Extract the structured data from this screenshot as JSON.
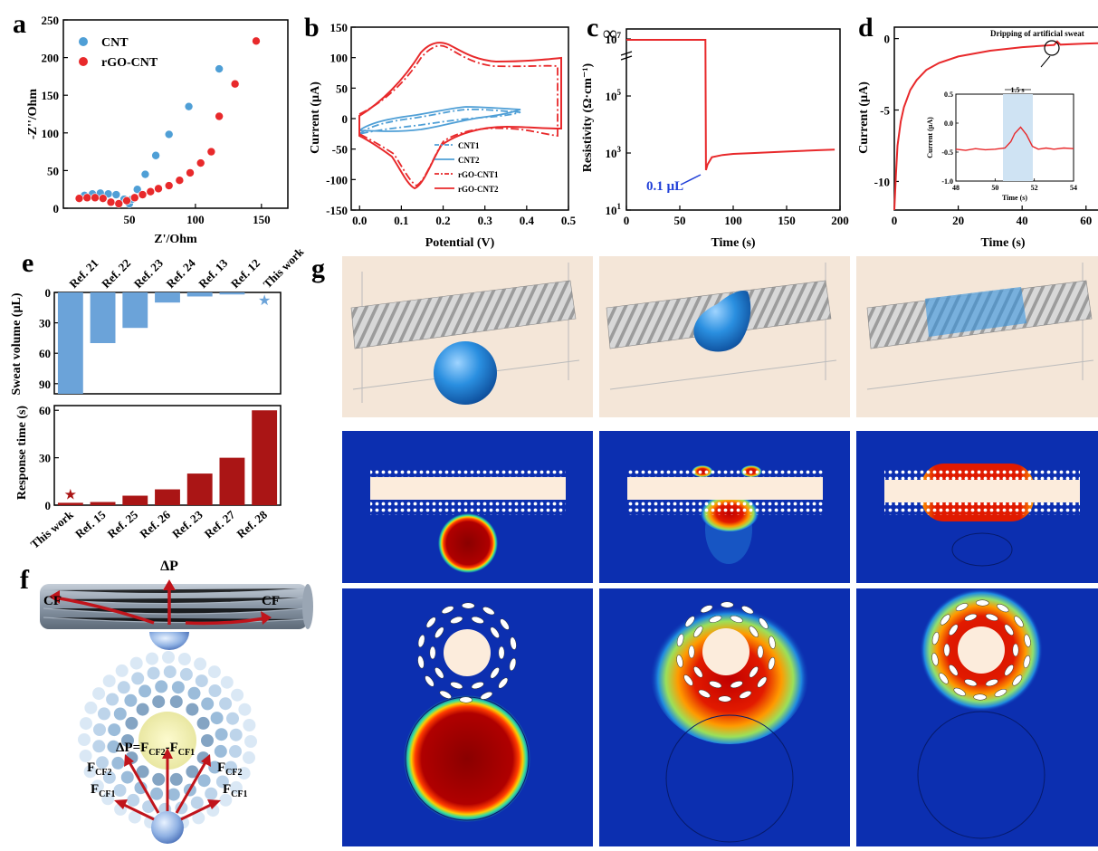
{
  "panel_labels": {
    "a": "a",
    "b": "b",
    "c": "c",
    "d": "d",
    "e": "e",
    "f": "f",
    "g": "g"
  },
  "chart_data": [
    {
      "panel": "a",
      "type": "scatter",
      "xlabel": "Z'/Ohm",
      "ylabel": "-Z''/Ohm",
      "xlim": [
        0,
        170
      ],
      "ylim": [
        0,
        250
      ],
      "xticks": [
        "50",
        "100",
        "150"
      ],
      "yticks": [
        "0",
        "50",
        "100",
        "150",
        "200",
        "250"
      ],
      "legend": "top-left",
      "series": [
        {
          "name": "CNT",
          "color": "#4f9fd6",
          "x": [
            16,
            22,
            28,
            34,
            40,
            46,
            50,
            52,
            56,
            62,
            70,
            80,
            95,
            118
          ],
          "y": [
            17,
            19,
            20,
            19,
            18,
            12,
            6,
            12,
            25,
            45,
            70,
            98,
            135,
            185
          ]
        },
        {
          "name": "rGO-CNT",
          "color": "#e8292b",
          "x": [
            12,
            18,
            24,
            30,
            36,
            42,
            48,
            54,
            60,
            66,
            72,
            80,
            88,
            96,
            104,
            112,
            118,
            130,
            146
          ],
          "y": [
            13,
            14,
            14,
            13,
            8,
            6,
            10,
            14,
            18,
            22,
            26,
            30,
            37,
            47,
            60,
            75,
            122,
            165,
            222
          ]
        }
      ]
    },
    {
      "panel": "b",
      "type": "line",
      "xlabel": "Potential (V)",
      "ylabel": "Current (µA)",
      "xlim": [
        -0.02,
        0.5
      ],
      "ylim": [
        -150,
        150
      ],
      "xticks": [
        "0.0",
        "0.1",
        "0.2",
        "0.3",
        "0.4",
        "0.5"
      ],
      "yticks": [
        "-150",
        "-100",
        "-50",
        "0",
        "50",
        "100",
        "150"
      ],
      "legend": "bottom-right",
      "series": [
        {
          "name": "CNT1",
          "color": "#4f9fd6",
          "dash": "dashdot"
        },
        {
          "name": "CNT2",
          "color": "#4f9fd6",
          "dash": "solid"
        },
        {
          "name": "rGO-CNT1",
          "color": "#e8292b",
          "dash": "dashdot"
        },
        {
          "name": "rGO-CNT2",
          "color": "#e8292b",
          "dash": "solid"
        }
      ]
    },
    {
      "panel": "c",
      "type": "line",
      "xlabel": "Time (s)",
      "ylabel": "Resistivity (Ω·cm⁻¹)",
      "scale": "log",
      "xlim": [
        0,
        200
      ],
      "ylim_exp": [
        1,
        7
      ],
      "xticks": [
        "0",
        "50",
        "100",
        "150",
        "200"
      ],
      "ytick_exps": [
        "1",
        "3",
        "5",
        "7"
      ],
      "ytop": "∞",
      "annotation": "0.1 µL",
      "series": [
        {
          "color": "#e8292b",
          "x": [
            0,
            73,
            74,
            74.5,
            76,
            80,
            90,
            100,
            120,
            150,
            180,
            195
          ],
          "logy": [
            8,
            8,
            7.9,
            2.4,
            2.6,
            2.85,
            2.93,
            2.97,
            3.0,
            3.05,
            3.1,
            3.12
          ]
        }
      ]
    },
    {
      "panel": "d",
      "type": "line",
      "xlabel": "Time (s)",
      "ylabel": "Current (µA)",
      "xlim": [
        0,
        68
      ],
      "ylim": [
        -12,
        0.8
      ],
      "xticks": [
        "0",
        "20",
        "40",
        "60"
      ],
      "yticks": [
        "0",
        "-5",
        "-10"
      ],
      "annotation": "Dripping of artificial sweat",
      "series": [
        {
          "color": "#e8292b",
          "x": [
            0,
            0.5,
            1,
            2,
            3,
            5,
            7,
            10,
            14,
            20,
            30,
            40,
            50,
            51,
            52,
            60,
            68
          ],
          "y": [
            -12,
            -9.5,
            -7.5,
            -5.8,
            -4.8,
            -3.6,
            -2.9,
            -2.2,
            -1.7,
            -1.25,
            -0.85,
            -0.6,
            -0.45,
            -0.2,
            -0.42,
            -0.35,
            -0.3
          ]
        }
      ],
      "inset": {
        "xlabel": "Time (s)",
        "ylabel": "Current (µA)",
        "xlim": [
          48,
          54
        ],
        "ylim": [
          -1.0,
          0.5
        ],
        "xticks": [
          "48",
          "50",
          "52",
          "54"
        ],
        "yticks": [
          "0.5",
          "0.0",
          "-0.5",
          "-1.0"
        ],
        "annotation": "1.5 s",
        "series": [
          {
            "color": "#e8292b",
            "x": [
              48,
              48.5,
              49,
              49.5,
              50,
              50.5,
              50.8,
              51.0,
              51.3,
              51.6,
              51.9,
              52.2,
              52.6,
              53,
              53.5,
              54
            ],
            "y": [
              -0.45,
              -0.47,
              -0.44,
              -0.46,
              -0.45,
              -0.43,
              -0.32,
              -0.18,
              -0.07,
              -0.2,
              -0.4,
              -0.45,
              -0.43,
              -0.45,
              -0.43,
              -0.44
            ]
          }
        ]
      }
    },
    {
      "panel": "e-top",
      "type": "bar",
      "ylabel": "Sweat volume (µL)",
      "orientation": "down",
      "categories": [
        "Ref. 21",
        "Ref. 22",
        "Ref. 23",
        "Ref. 24",
        "Ref. 13",
        "Ref. 12",
        "This work"
      ],
      "values": [
        100,
        50,
        35,
        10,
        4,
        2,
        0.1
      ],
      "ylim": [
        0,
        100
      ],
      "yticks": [
        "0",
        "30",
        "60",
        "90"
      ],
      "color": "#6ba3d9"
    },
    {
      "panel": "e-bottom",
      "type": "bar",
      "ylabel": "Response time (s)",
      "categories": [
        "This work",
        "Ref. 15",
        "Ref. 25",
        "Ref. 26",
        "Ref. 23",
        "Ref. 27",
        "Ref. 28"
      ],
      "values": [
        1.5,
        2,
        6,
        10,
        20,
        30,
        60
      ],
      "ylim": [
        0,
        63
      ],
      "yticks": [
        "0",
        "30",
        "60"
      ],
      "color": "#aa1515"
    }
  ],
  "diagram_f": {
    "top_label": "ΔP",
    "left_label": "CF",
    "right_label": "CF",
    "equation": "ΔP=F",
    "eq_sub1": "CF2",
    "eq_minus": "-F",
    "eq_sub2": "CF1",
    "force_labels": [
      {
        "main": "F",
        "sub": "CF2"
      },
      {
        "main": "F",
        "sub": "CF2"
      },
      {
        "main": "F",
        "sub": "CF1"
      },
      {
        "main": "F",
        "sub": "CF1"
      }
    ]
  },
  "colors": {
    "blue": "#4f9fd6",
    "red": "#e8292b",
    "darkred": "#aa1515",
    "jet_bg": "#0c2fb0"
  }
}
